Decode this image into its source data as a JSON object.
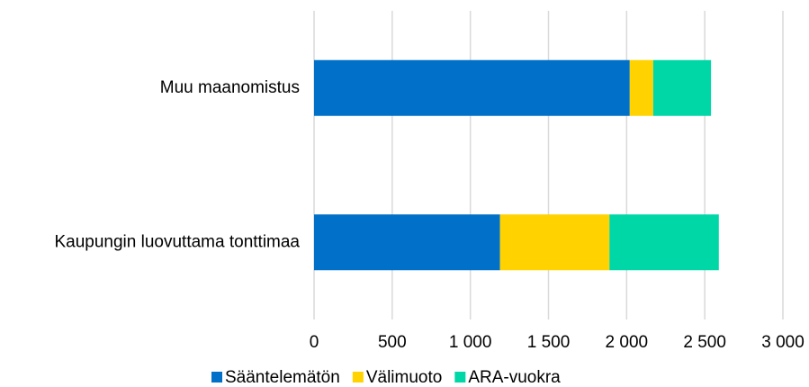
{
  "chart_data": {
    "type": "stacked-bar-horizontal",
    "categories": [
      "Muu maanomistus",
      "Kaupungin luovuttama tonttimaa"
    ],
    "series": [
      {
        "name": "Sääntelemätön",
        "color": "#0070c8",
        "values": [
          2020,
          1190
        ]
      },
      {
        "name": "Välimuoto",
        "color": "#ffd200",
        "values": [
          150,
          700
        ]
      },
      {
        "name": "ARA-vuokra",
        "color": "#00d7a7",
        "values": [
          370,
          700
        ]
      }
    ],
    "xlim": [
      0,
      3000
    ],
    "xticks": [
      0,
      500,
      {
        "value": 1000,
        "label": "1 000"
      },
      {
        "value": 1500,
        "label": "1 500"
      },
      {
        "value": 2000,
        "label": "2 000"
      },
      {
        "value": 2500,
        "label": "2 500"
      },
      {
        "value": 3000,
        "label": "3 000"
      }
    ],
    "grid": true,
    "legend": "bottom"
  }
}
